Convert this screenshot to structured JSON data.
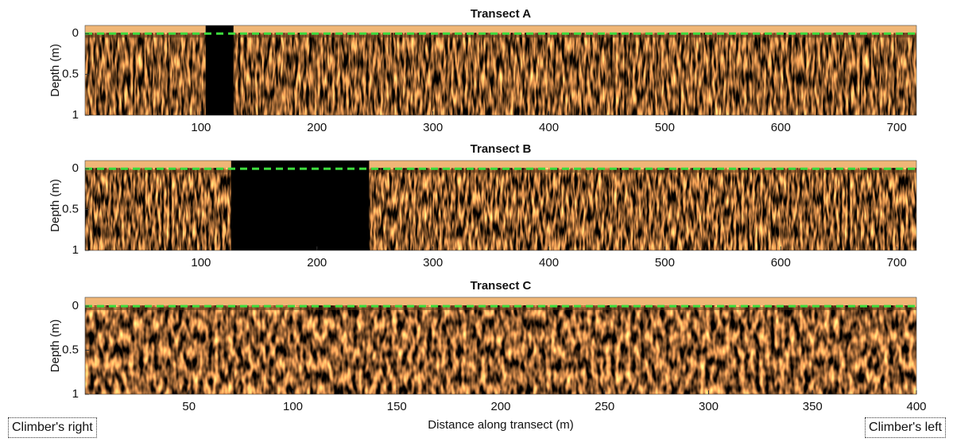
{
  "chart_data": [
    {
      "type": "radargram",
      "title": "Transect A",
      "ylabel": "Depth (m)",
      "xlim": [
        0,
        717
      ],
      "xticks": [
        100,
        200,
        300,
        400,
        500,
        600,
        700
      ],
      "ylim": [
        -0.1,
        1
      ],
      "yticks": [
        0,
        0.5,
        1
      ],
      "gaps": [
        [
          104,
          128
        ]
      ],
      "surface_depth": 0,
      "surface_color": "#3ddc3d"
    },
    {
      "type": "radargram",
      "title": "Transect B",
      "ylabel": "Depth (m)",
      "xlim": [
        0,
        717
      ],
      "xticks": [
        100,
        200,
        300,
        400,
        500,
        600,
        700
      ],
      "ylim": [
        -0.1,
        1
      ],
      "yticks": [
        0,
        0.5,
        1
      ],
      "gaps": [
        [
          126,
          245
        ]
      ],
      "surface_depth": 0,
      "surface_color": "#3ddc3d"
    },
    {
      "type": "radargram",
      "title": "Transect C",
      "ylabel": "Depth (m)",
      "xlabel": "Distance along transect (m)",
      "xlim": [
        0,
        400
      ],
      "xticks": [
        50,
        100,
        150,
        200,
        250,
        300,
        350,
        400
      ],
      "ylim": [
        -0.1,
        1
      ],
      "yticks": [
        0,
        0.5,
        1
      ],
      "gaps": [],
      "surface_depth": 0,
      "surface_color": "#3ddc3d",
      "annotations": [
        "Climber's right",
        "Climber's left"
      ]
    }
  ]
}
